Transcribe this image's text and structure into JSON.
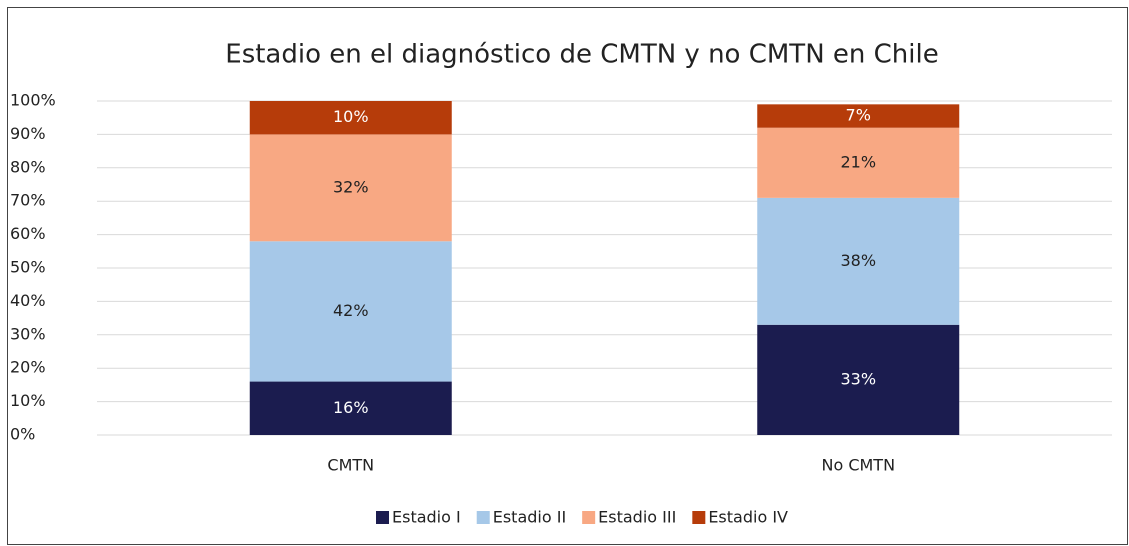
{
  "chart_data": {
    "type": "stacked_bar",
    "title": "Estadio en el diagnóstico de CMTN y no CMTN en Chile",
    "categories": [
      "CMTN",
      "No CMTN"
    ],
    "series": [
      {
        "name": "Estadio I",
        "color": "#1b1c4f",
        "values": [
          16,
          33
        ],
        "value_labels": [
          "16%",
          "33%"
        ]
      },
      {
        "name": "Estadio II",
        "color": "#a6c8e8",
        "values": [
          42,
          38
        ],
        "value_labels": [
          "42%",
          "38%"
        ]
      },
      {
        "name": "Estadio III",
        "color": "#f8a883",
        "values": [
          32,
          21
        ],
        "value_labels": [
          "32%",
          "21%"
        ]
      },
      {
        "name": "Estadio IV",
        "color": "#b63c0a",
        "values": [
          10,
          7
        ],
        "value_labels": [
          "10%",
          "7%"
        ]
      }
    ],
    "ylim": [
      0,
      100
    ],
    "yticks": [
      {
        "value": 0,
        "label": "0%"
      },
      {
        "value": 10,
        "label": "10%"
      },
      {
        "value": 20,
        "label": "20%"
      },
      {
        "value": 30,
        "label": "30%"
      },
      {
        "value": 40,
        "label": "40%"
      },
      {
        "value": 50,
        "label": "50%"
      },
      {
        "value": 60,
        "label": "60%"
      },
      {
        "value": 70,
        "label": "70%"
      },
      {
        "value": 80,
        "label": "80%"
      },
      {
        "value": 90,
        "label": "90%"
      },
      {
        "value": 100,
        "label": "100%"
      }
    ],
    "grid": true,
    "legend": "bottom"
  }
}
